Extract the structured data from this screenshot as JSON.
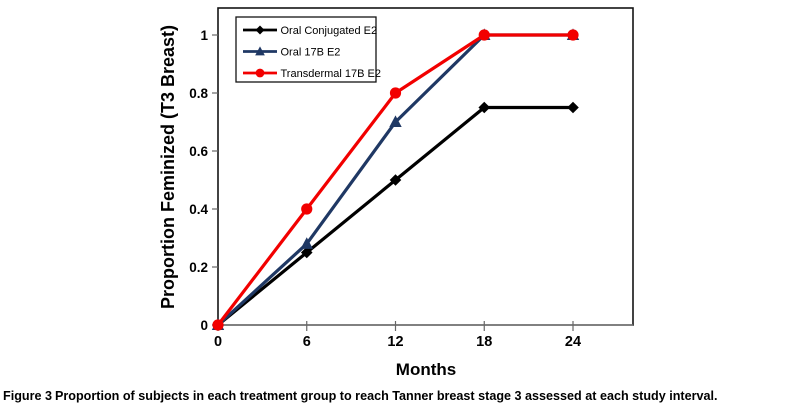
{
  "caption": {
    "label": "Figure 3",
    "text": "Proportion of subjects in each treatment group to reach Tanner breast stage 3 assessed at each study interval."
  },
  "chart_data": {
    "type": "line",
    "title": "",
    "xlabel": "Months",
    "ylabel": "Proportion Feminized (T3 Breast)",
    "x": [
      0,
      6,
      12,
      18,
      24
    ],
    "xticks": [
      0,
      6,
      12,
      18,
      24
    ],
    "xticklabels": [
      "0",
      "6",
      "12",
      "18",
      "24"
    ],
    "yticks": [
      0,
      0.2,
      0.4,
      0.6,
      0.8,
      1
    ],
    "yticklabels": [
      "0",
      "0.2",
      "0.4",
      "0.6",
      "0.8",
      "1"
    ],
    "xlim": [
      0,
      28
    ],
    "ylim": [
      0,
      1.09
    ],
    "grid": false,
    "legend_position": "top-left-inside",
    "series": [
      {
        "name": "Oral Conjugated E2",
        "color": "#000000",
        "marker": "diamond",
        "values": [
          0,
          0.25,
          0.5,
          0.75,
          0.75
        ]
      },
      {
        "name": "Oral 17B E2",
        "color": "#1F3864",
        "marker": "triangle",
        "values": [
          0,
          0.28,
          0.7,
          1,
          1
        ]
      },
      {
        "name": "Transdermal 17B E2",
        "color": "#F20000",
        "marker": "circle",
        "values": [
          0,
          0.4,
          0.8,
          1,
          1
        ]
      }
    ]
  }
}
